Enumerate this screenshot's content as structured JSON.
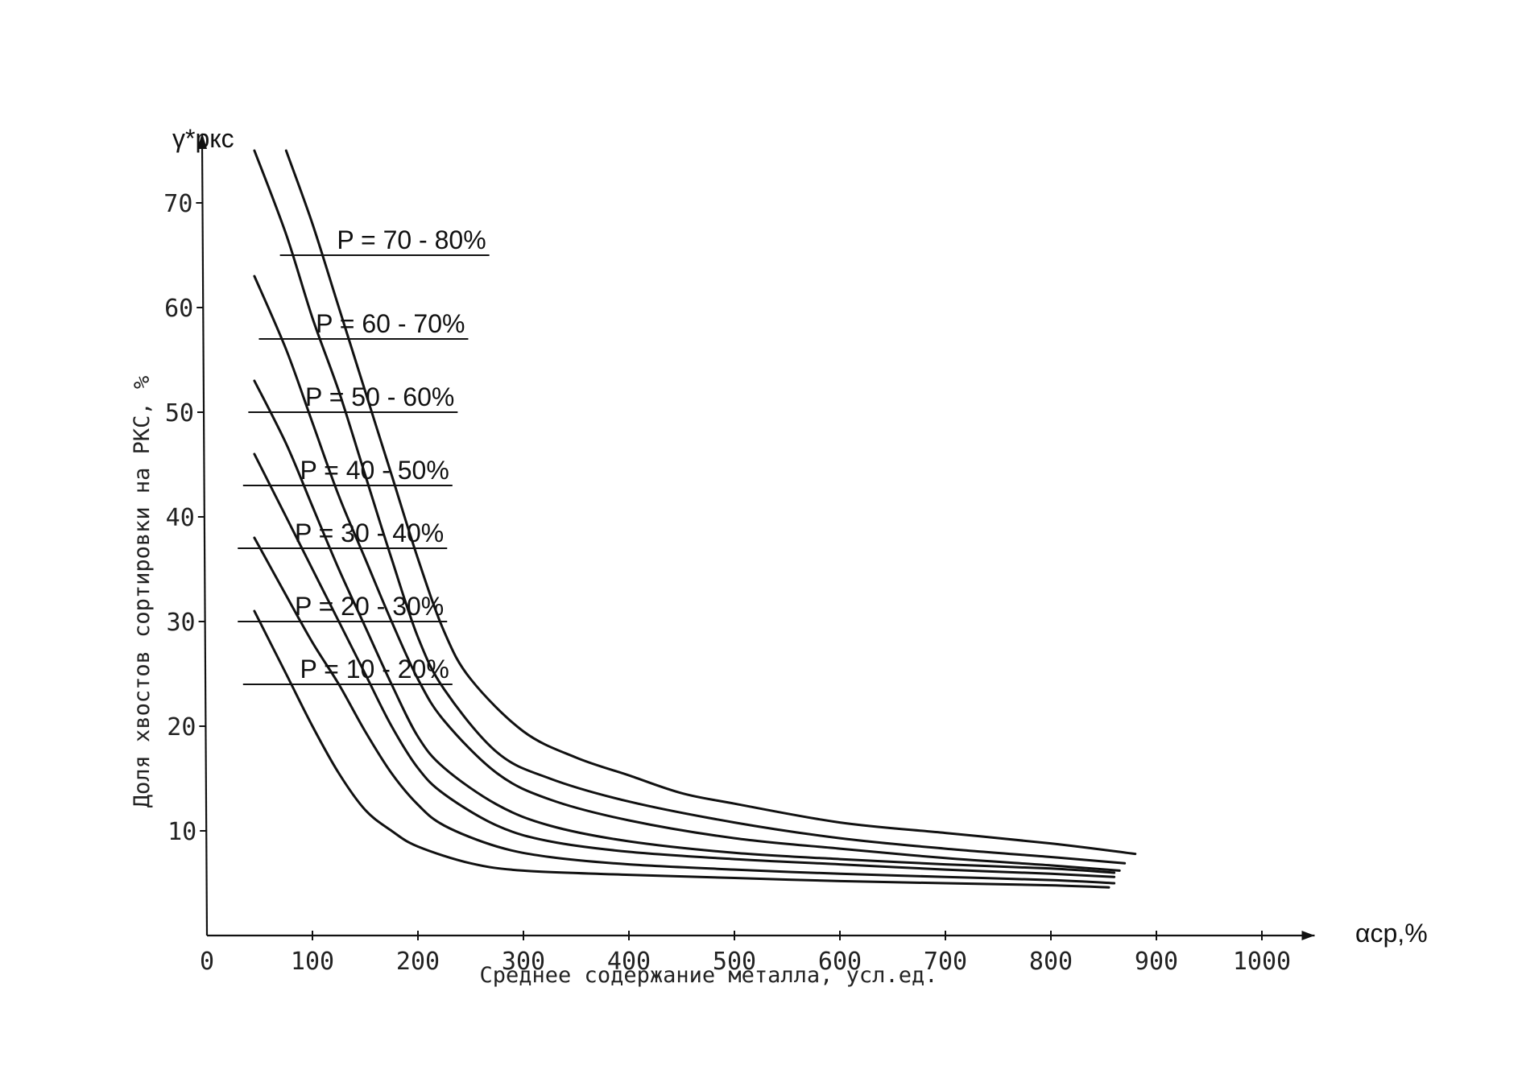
{
  "chart_data": {
    "type": "line",
    "title": "",
    "xlabel": "Среднее содержание металла, усл.ед.",
    "ylabel": "Доля хвостов сортировки на РКС, %",
    "x_unit": "αср,%",
    "y_unit": "γ*ркс",
    "xlim": [
      0,
      1050
    ],
    "ylim": [
      0,
      75
    ],
    "x_ticks": [
      0,
      100,
      200,
      300,
      400,
      500,
      600,
      700,
      800,
      900,
      1000
    ],
    "x_tick_labels": [
      "0",
      "100",
      "200",
      "300",
      "400",
      "500",
      "600",
      "700",
      "800",
      "900",
      "1000"
    ],
    "y_ticks": [
      10,
      20,
      30,
      40,
      50,
      60,
      70
    ],
    "y_tick_labels": [
      "10",
      "20",
      "30",
      "40",
      "50",
      "60",
      "70"
    ],
    "grid": false,
    "legend": "inline labels",
    "series": [
      {
        "name": "P = 70 - 80%",
        "label_at": [
          115,
          65
        ],
        "points": [
          [
            75,
            75
          ],
          [
            100,
            68
          ],
          [
            125,
            60
          ],
          [
            150,
            52
          ],
          [
            175,
            44
          ],
          [
            200,
            36
          ],
          [
            225,
            29
          ],
          [
            250,
            24.5
          ],
          [
            300,
            19.5
          ],
          [
            350,
            17
          ],
          [
            400,
            15.3
          ],
          [
            450,
            13.6
          ],
          [
            500,
            12.6
          ],
          [
            600,
            10.8
          ],
          [
            700,
            9.8
          ],
          [
            800,
            8.8
          ],
          [
            880,
            7.8
          ]
        ]
      },
      {
        "name": "P = 60 - 70%",
        "label_at": [
          95,
          57
        ],
        "points": [
          [
            45,
            75
          ],
          [
            75,
            67
          ],
          [
            100,
            59
          ],
          [
            125,
            52
          ],
          [
            150,
            44
          ],
          [
            175,
            36
          ],
          [
            200,
            28.5
          ],
          [
            225,
            23.5
          ],
          [
            275,
            17.5
          ],
          [
            325,
            15
          ],
          [
            400,
            12.8
          ],
          [
            500,
            10.8
          ],
          [
            600,
            9.3
          ],
          [
            700,
            8.3
          ],
          [
            800,
            7.5
          ],
          [
            870,
            6.9
          ]
        ]
      },
      {
        "name": "P = 50 - 60%",
        "label_at": [
          85,
          50
        ],
        "points": [
          [
            45,
            63
          ],
          [
            75,
            56
          ],
          [
            100,
            49
          ],
          [
            125,
            42
          ],
          [
            150,
            36
          ],
          [
            175,
            30
          ],
          [
            200,
            24.5
          ],
          [
            225,
            20.5
          ],
          [
            275,
            15.5
          ],
          [
            325,
            13
          ],
          [
            400,
            11
          ],
          [
            500,
            9.3
          ],
          [
            600,
            8.3
          ],
          [
            700,
            7.4
          ],
          [
            800,
            6.7
          ],
          [
            865,
            6.2
          ]
        ]
      },
      {
        "name": "P = 40 - 50%",
        "label_at": [
          80,
          43
        ],
        "points": [
          [
            45,
            53
          ],
          [
            75,
            47
          ],
          [
            100,
            41
          ],
          [
            125,
            35
          ],
          [
            150,
            29.5
          ],
          [
            175,
            24
          ],
          [
            200,
            19
          ],
          [
            225,
            16
          ],
          [
            275,
            12.5
          ],
          [
            325,
            10.5
          ],
          [
            400,
            9
          ],
          [
            500,
            7.9
          ],
          [
            600,
            7.3
          ],
          [
            700,
            6.8
          ],
          [
            800,
            6.4
          ],
          [
            860,
            6
          ]
        ]
      },
      {
        "name": "P = 30 - 40%",
        "label_at": [
          75,
          37
        ],
        "points": [
          [
            45,
            46
          ],
          [
            75,
            40
          ],
          [
            100,
            35
          ],
          [
            125,
            30
          ],
          [
            150,
            25
          ],
          [
            175,
            20
          ],
          [
            200,
            16
          ],
          [
            225,
            13.5
          ],
          [
            275,
            10.5
          ],
          [
            325,
            9
          ],
          [
            400,
            8
          ],
          [
            500,
            7.3
          ],
          [
            600,
            6.8
          ],
          [
            700,
            6.3
          ],
          [
            800,
            5.9
          ],
          [
            860,
            5.6
          ]
        ]
      },
      {
        "name": "P = 20 - 30%",
        "label_at": [
          75,
          30
        ],
        "points": [
          [
            45,
            38
          ],
          [
            75,
            32.5
          ],
          [
            100,
            28
          ],
          [
            125,
            24
          ],
          [
            150,
            19.5
          ],
          [
            175,
            15.5
          ],
          [
            200,
            12.5
          ],
          [
            225,
            10.5
          ],
          [
            275,
            8.5
          ],
          [
            325,
            7.5
          ],
          [
            400,
            6.8
          ],
          [
            500,
            6.3
          ],
          [
            600,
            5.9
          ],
          [
            700,
            5.6
          ],
          [
            800,
            5.3
          ],
          [
            860,
            5
          ]
        ]
      },
      {
        "name": "P = 10 - 20%",
        "label_at": [
          80,
          24
        ],
        "points": [
          [
            45,
            31
          ],
          [
            75,
            25
          ],
          [
            100,
            20
          ],
          [
            125,
            15.5
          ],
          [
            150,
            12
          ],
          [
            175,
            10
          ],
          [
            200,
            8.5
          ],
          [
            250,
            6.9
          ],
          [
            300,
            6.2
          ],
          [
            400,
            5.8
          ],
          [
            500,
            5.5
          ],
          [
            600,
            5.2
          ],
          [
            700,
            5
          ],
          [
            800,
            4.8
          ],
          [
            855,
            4.6
          ]
        ]
      }
    ]
  }
}
